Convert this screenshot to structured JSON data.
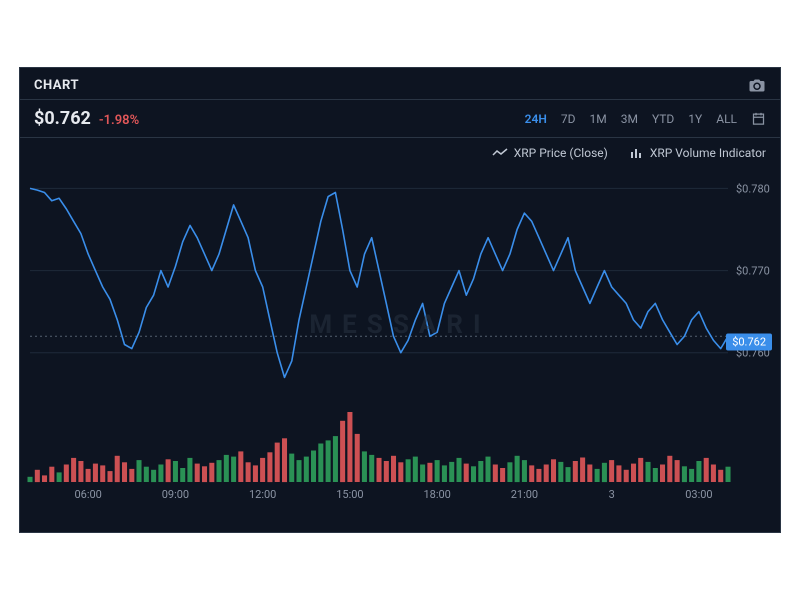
{
  "header": {
    "title": "CHART"
  },
  "price": {
    "value": "$0.762",
    "change_pct": "-1.98%",
    "change_color": "#e15759"
  },
  "ranges": {
    "items": [
      "24H",
      "7D",
      "1M",
      "3M",
      "YTD",
      "1Y",
      "ALL"
    ],
    "active_index": 0,
    "active_color": "#3a8eea",
    "inactive_color": "#8a93a3"
  },
  "legend": {
    "price_label": "XRP Price (Close)",
    "volume_label": "XRP Volume Indicator"
  },
  "watermark": "MESSARI",
  "chart": {
    "type": "line",
    "background_color": "#0d1421",
    "grid_color": "#1f2a3a",
    "axis_label_color": "#8a93a3",
    "axis_fontsize": 11,
    "line_color": "#3a8eea",
    "line_width": 1.6,
    "dotted_ref_color": "#556070",
    "price_tag_bg": "#3a8eea",
    "price_tag_text": "$0.762",
    "ylim": [
      0.754,
      0.782
    ],
    "yticks": [
      0.76,
      0.77,
      0.78
    ],
    "ytick_labels": [
      "$0.760",
      "$0.770",
      "$0.780"
    ],
    "current_price": 0.762,
    "xlim": [
      0,
      96
    ],
    "xtick_positions": [
      8,
      20,
      32,
      44,
      56,
      68,
      80,
      92
    ],
    "xtick_labels": [
      "06:00",
      "09:00",
      "12:00",
      "15:00",
      "18:00",
      "21:00",
      "3",
      "03:00"
    ],
    "price_series_y": [
      0.78,
      0.7798,
      0.7795,
      0.7785,
      0.7788,
      0.7775,
      0.776,
      0.7745,
      0.772,
      0.77,
      0.768,
      0.7665,
      0.764,
      0.761,
      0.7605,
      0.7625,
      0.7655,
      0.767,
      0.77,
      0.768,
      0.7705,
      0.7735,
      0.7755,
      0.774,
      0.772,
      0.77,
      0.772,
      0.775,
      0.778,
      0.776,
      0.774,
      0.77,
      0.768,
      0.764,
      0.76,
      0.757,
      0.759,
      0.764,
      0.768,
      0.772,
      0.776,
      0.779,
      0.7795,
      0.775,
      0.77,
      0.768,
      0.772,
      0.774,
      0.77,
      0.766,
      0.762,
      0.76,
      0.7615,
      0.764,
      0.766,
      0.762,
      0.7625,
      0.766,
      0.768,
      0.77,
      0.767,
      0.769,
      0.772,
      0.774,
      0.772,
      0.77,
      0.772,
      0.775,
      0.777,
      0.776,
      0.774,
      0.772,
      0.77,
      0.772,
      0.774,
      0.77,
      0.768,
      0.766,
      0.768,
      0.77,
      0.768,
      0.767,
      0.766,
      0.764,
      0.763,
      0.765,
      0.766,
      0.764,
      0.7625,
      0.761,
      0.762,
      0.764,
      0.765,
      0.763,
      0.7615,
      0.7605,
      0.762
    ],
    "volume_series": [
      12,
      28,
      15,
      35,
      22,
      40,
      55,
      48,
      30,
      42,
      38,
      25,
      60,
      45,
      30,
      50,
      35,
      28,
      40,
      52,
      48,
      32,
      55,
      42,
      36,
      44,
      50,
      62,
      58,
      70,
      45,
      38,
      55,
      68,
      90,
      100,
      65,
      50,
      58,
      72,
      88,
      95,
      105,
      140,
      160,
      110,
      70,
      62,
      55,
      48,
      60,
      45,
      52,
      58,
      40,
      44,
      50,
      38,
      46,
      55,
      42,
      36,
      48,
      58,
      40,
      32,
      45,
      60,
      50,
      38,
      30,
      40,
      52,
      46,
      34,
      48,
      56,
      40,
      30,
      44,
      50,
      38,
      28,
      42,
      55,
      46,
      32,
      40,
      60,
      50,
      36,
      30,
      48,
      55,
      40,
      28,
      35
    ],
    "volume_colors_up": "#2e9e5b",
    "volume_colors_down": "#e15759",
    "volume_max": 160
  }
}
